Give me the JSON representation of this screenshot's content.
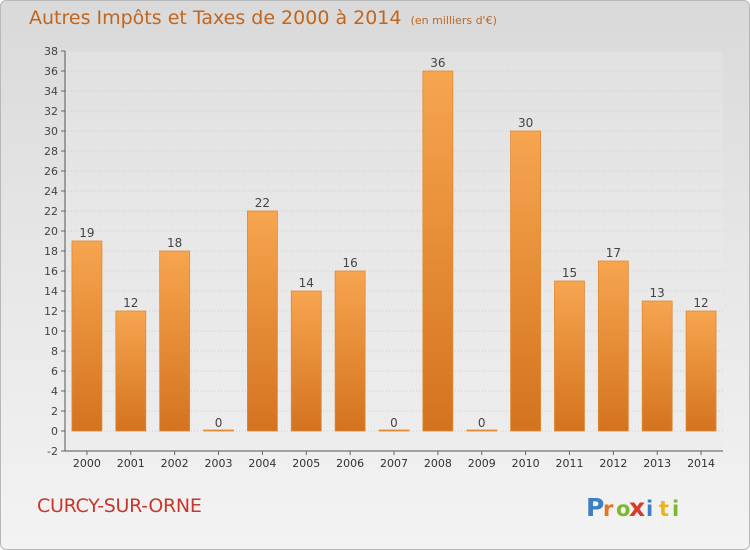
{
  "title": {
    "main": "Autres Impôts et Taxes de 2000 à 2014",
    "sub": "(en milliers d'€)"
  },
  "commune": "CURCY-SUR-ORNE",
  "logo": {
    "text": "Proxiti",
    "letters": [
      "P",
      "r",
      "o",
      "x",
      "i",
      "t",
      "i"
    ]
  },
  "colors": {
    "title": "#c0661e",
    "commune": "#c8372d",
    "bar_light": "#f7a54f",
    "bar_dark": "#d4731f",
    "bar_edge": "#e08a35"
  },
  "chart_data": {
    "type": "bar",
    "categories": [
      "2000",
      "2001",
      "2002",
      "2003",
      "2004",
      "2005",
      "2006",
      "2007",
      "2008",
      "2009",
      "2010",
      "2011",
      "2012",
      "2013",
      "2014"
    ],
    "values": [
      19,
      12,
      18,
      0,
      22,
      14,
      16,
      0,
      36,
      0,
      30,
      15,
      17,
      13,
      12
    ],
    "data_labels": [
      "19",
      "12",
      "18",
      "0",
      "22",
      "14",
      "16",
      "0",
      "36",
      "0",
      "30",
      "15",
      "17",
      "13",
      "12"
    ],
    "yticks": [
      -2,
      0,
      2,
      4,
      6,
      8,
      10,
      12,
      14,
      16,
      18,
      20,
      22,
      24,
      26,
      28,
      30,
      32,
      34,
      36,
      38
    ],
    "ylim": [
      -2,
      38
    ],
    "grid": true,
    "xlabel": "",
    "ylabel": ""
  }
}
